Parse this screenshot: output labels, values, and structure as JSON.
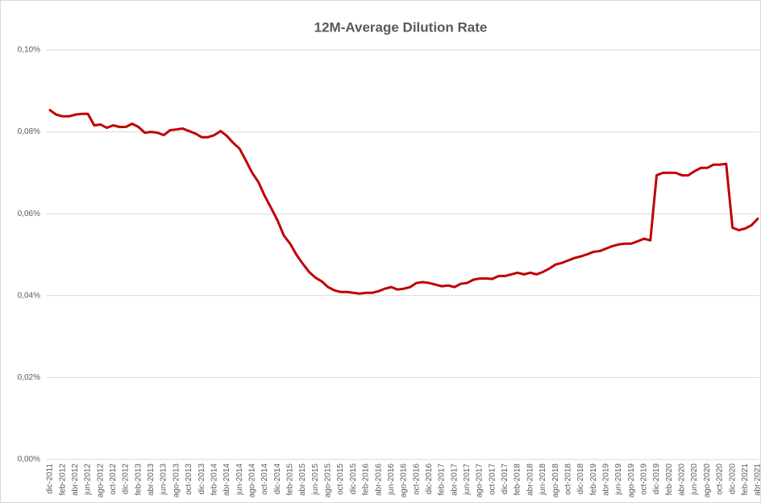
{
  "chart_data": {
    "type": "line",
    "title": "12M-Average Dilution Rate",
    "categories": [
      "dic-2011",
      null,
      "feb-2012",
      null,
      "abr-2012",
      null,
      "jun-2012",
      null,
      "ago-2012",
      null,
      "oct-2012",
      null,
      "dic-2012",
      null,
      "feb-2013",
      null,
      "abr-2013",
      null,
      "jun-2013",
      null,
      "ago-2013",
      null,
      "oct-2013",
      null,
      "dic-2013",
      null,
      "feb-2014",
      null,
      "abr-2014",
      null,
      "jun-2014",
      null,
      "ago-2014",
      null,
      "oct-2014",
      null,
      "dic-2014",
      null,
      "feb-2015",
      null,
      "abr-2015",
      null,
      "jun-2015",
      null,
      "ago-2015",
      null,
      "oct-2015",
      null,
      "dic-2015",
      null,
      "feb-2016",
      null,
      "abr-2016",
      null,
      "jun-2016",
      null,
      "ago-2016",
      null,
      "oct-2016",
      null,
      "dic-2016",
      null,
      "feb-2017",
      null,
      "abr-2017",
      null,
      "jun-2017",
      null,
      "ago-2017",
      null,
      "oct-2017",
      null,
      "dic-2017",
      null,
      "feb-2018",
      null,
      "abr-2018",
      null,
      "jun-2018",
      null,
      "ago-2018",
      null,
      "oct-2018",
      null,
      "dic-2018",
      null,
      "feb-2019",
      null,
      "abr-2019",
      null,
      "jun-2019",
      null,
      "ago-2019",
      null,
      "oct-2019",
      null,
      "dic-2019",
      null,
      "feb-2020",
      null,
      "abr-2020",
      null,
      "jun-2020",
      null,
      "ago-2020",
      null,
      "oct-2020",
      null,
      "dic-2020",
      null,
      "feb-2021",
      null,
      "abr-2021"
    ],
    "series": [
      {
        "color": "#c00000",
        "values": [
          0.0853,
          0.0842,
          0.0838,
          0.0838,
          0.0842,
          0.0844,
          0.0844,
          0.0816,
          0.0818,
          0.081,
          0.0816,
          0.0812,
          0.0812,
          0.082,
          0.0812,
          0.0798,
          0.08,
          0.0798,
          0.0792,
          0.0804,
          0.0806,
          0.0808,
          0.0802,
          0.0796,
          0.0787,
          0.0787,
          0.0792,
          0.0802,
          0.079,
          0.0773,
          0.0759,
          0.073,
          0.07,
          0.0677,
          0.0643,
          0.0614,
          0.0584,
          0.0547,
          0.0527,
          0.05,
          0.0478,
          0.0458,
          0.0444,
          0.0435,
          0.0421,
          0.0413,
          0.0409,
          0.0409,
          0.0407,
          0.0405,
          0.0407,
          0.0407,
          0.0411,
          0.0417,
          0.0421,
          0.0415,
          0.0417,
          0.0421,
          0.0431,
          0.0433,
          0.0431,
          0.0427,
          0.0423,
          0.0425,
          0.0421,
          0.0429,
          0.0431,
          0.0439,
          0.0442,
          0.0442,
          0.0441,
          0.0448,
          0.0448,
          0.0452,
          0.0456,
          0.0452,
          0.0456,
          0.0452,
          0.0458,
          0.0466,
          0.0476,
          0.048,
          0.0486,
          0.0492,
          0.0496,
          0.0501,
          0.0507,
          0.0509,
          0.0515,
          0.0521,
          0.0525,
          0.0527,
          0.0527,
          0.0533,
          0.0539,
          0.0535,
          0.0694,
          0.07,
          0.07,
          0.07,
          0.0694,
          0.0694,
          0.0704,
          0.0712,
          0.0712,
          0.072,
          0.072,
          0.0722,
          0.0566,
          0.056,
          0.0564,
          0.0572,
          0.0588
        ]
      }
    ],
    "ylim": [
      0,
      0.1
    ],
    "yticks": [
      {
        "value": 0,
        "label": "0,00%"
      },
      {
        "value": 0.02,
        "label": "0,02%"
      },
      {
        "value": 0.04,
        "label": "0,04%"
      },
      {
        "value": 0.06,
        "label": "0,06%"
      },
      {
        "value": 0.08,
        "label": "0,08%"
      },
      {
        "value": 0.1,
        "label": "0,10%"
      }
    ],
    "grid": true
  }
}
